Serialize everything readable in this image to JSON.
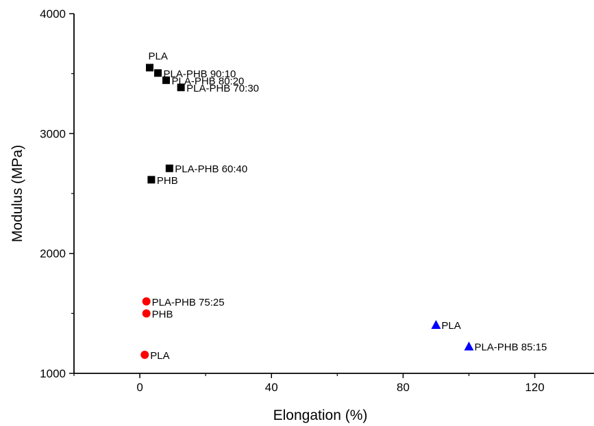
{
  "chart_data": {
    "type": "scatter",
    "title": "",
    "xlabel": "Elongation (%)",
    "ylabel": "Modulus (MPa)",
    "xlim": [
      -20,
      138
    ],
    "ylim": [
      1000,
      4000
    ],
    "x_ticks": [
      0,
      40,
      80,
      120
    ],
    "y_ticks": [
      1000,
      2000,
      3000,
      4000
    ],
    "grid": false,
    "legend": "none",
    "series": [
      {
        "marker": "square",
        "color": "#000000",
        "points": [
          {
            "x": 3,
            "y": 3550,
            "label": "PLA"
          },
          {
            "x": 5.5,
            "y": 3505,
            "label": "PLA-PHB 90:10"
          },
          {
            "x": 8,
            "y": 3445,
            "label": "PLA-PHB 80:20"
          },
          {
            "x": 12.5,
            "y": 3385,
            "label": "PLA-PHB 70:30"
          },
          {
            "x": 9,
            "y": 2710,
            "label": "PLA-PHB 60:40"
          },
          {
            "x": 3.5,
            "y": 2615,
            "label": "PHB"
          }
        ]
      },
      {
        "marker": "circle",
        "color": "#ff0000",
        "points": [
          {
            "x": 2,
            "y": 1600,
            "label": "PLA-PHB 75:25"
          },
          {
            "x": 2,
            "y": 1500,
            "label": "PHB"
          },
          {
            "x": 1.5,
            "y": 1155,
            "label": "PLA"
          }
        ]
      },
      {
        "marker": "triangle",
        "color": "#0000ff",
        "points": [
          {
            "x": 90,
            "y": 1405,
            "label": "PLA"
          },
          {
            "x": 100,
            "y": 1225,
            "label": "PLA-PHB 85:15"
          }
        ]
      }
    ]
  }
}
